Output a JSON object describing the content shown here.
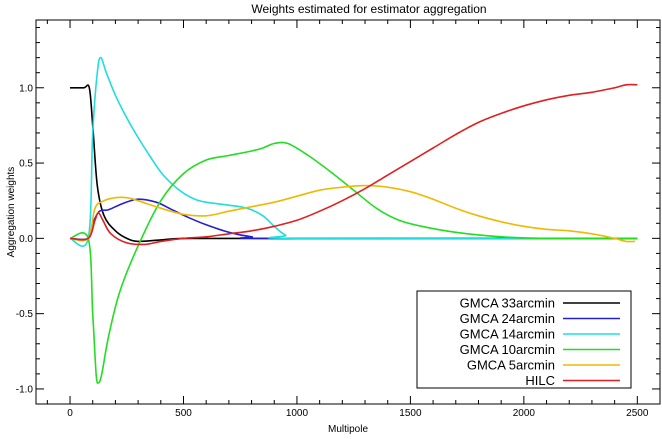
{
  "chart_data": {
    "type": "line",
    "title": "Weights estimated for estimator aggregation",
    "xlabel": "Multipole",
    "ylabel": "Aggregation weights",
    "xlim": [
      -150,
      2600
    ],
    "ylim": [
      -1.1,
      1.45
    ],
    "xticks": [
      0,
      500,
      1000,
      1500,
      2000,
      2500
    ],
    "xtick_labels": [
      "0",
      "500",
      "1000",
      "1500",
      "2000",
      "2500"
    ],
    "yticks": [
      -1.0,
      -0.5,
      0.0,
      0.5,
      1.0
    ],
    "ytick_labels": [
      "-1.0",
      "-0.5",
      "0.0",
      "0.5",
      "1.0"
    ],
    "grid": false,
    "legend_position": "bottom-right",
    "series": [
      {
        "name": "GMCA 33arcmin",
        "color": "#000000",
        "points": [
          [
            0,
            1.0
          ],
          [
            60,
            1.0
          ],
          [
            85,
            1.0
          ],
          [
            100,
            0.75
          ],
          [
            120,
            0.35
          ],
          [
            150,
            0.15
          ],
          [
            200,
            0.05
          ],
          [
            250,
            0.0
          ],
          [
            300,
            -0.02
          ],
          [
            400,
            -0.01
          ],
          [
            500,
            0.0
          ],
          [
            700,
            0.0
          ],
          [
            2500,
            0.0
          ]
        ]
      },
      {
        "name": "GMCA 24arcmin",
        "color": "#2222cc",
        "points": [
          [
            0,
            0.0
          ],
          [
            80,
            0.0
          ],
          [
            100,
            0.1
          ],
          [
            130,
            0.18
          ],
          [
            170,
            0.19
          ],
          [
            230,
            0.23
          ],
          [
            300,
            0.26
          ],
          [
            380,
            0.24
          ],
          [
            450,
            0.19
          ],
          [
            520,
            0.14
          ],
          [
            600,
            0.09
          ],
          [
            700,
            0.04
          ],
          [
            800,
            0.01
          ],
          [
            900,
            0.0
          ],
          [
            2500,
            0.0
          ]
        ]
      },
      {
        "name": "GMCA 14arcmin",
        "color": "#22dddd",
        "points": [
          [
            0,
            0.0
          ],
          [
            80,
            0.0
          ],
          [
            100,
            0.7
          ],
          [
            120,
            1.1
          ],
          [
            135,
            1.2
          ],
          [
            160,
            1.1
          ],
          [
            200,
            0.95
          ],
          [
            250,
            0.8
          ],
          [
            300,
            0.67
          ],
          [
            350,
            0.55
          ],
          [
            400,
            0.44
          ],
          [
            450,
            0.36
          ],
          [
            500,
            0.3
          ],
          [
            550,
            0.26
          ],
          [
            600,
            0.24
          ],
          [
            700,
            0.22
          ],
          [
            780,
            0.2
          ],
          [
            850,
            0.15
          ],
          [
            900,
            0.08
          ],
          [
            950,
            0.02
          ],
          [
            1000,
            0.0
          ],
          [
            2500,
            0.0
          ]
        ]
      },
      {
        "name": "GMCA 10arcmin",
        "color": "#22dd22",
        "points": [
          [
            0,
            0.0
          ],
          [
            80,
            0.0
          ],
          [
            100,
            -0.5
          ],
          [
            115,
            -0.9
          ],
          [
            125,
            -0.96
          ],
          [
            140,
            -0.9
          ],
          [
            170,
            -0.65
          ],
          [
            220,
            -0.35
          ],
          [
            300,
            -0.05
          ],
          [
            400,
            0.25
          ],
          [
            500,
            0.43
          ],
          [
            600,
            0.52
          ],
          [
            700,
            0.55
          ],
          [
            800,
            0.58
          ],
          [
            850,
            0.6
          ],
          [
            900,
            0.63
          ],
          [
            960,
            0.63
          ],
          [
            1050,
            0.55
          ],
          [
            1150,
            0.44
          ],
          [
            1250,
            0.32
          ],
          [
            1350,
            0.2
          ],
          [
            1450,
            0.12
          ],
          [
            1550,
            0.08
          ],
          [
            1700,
            0.04
          ],
          [
            1900,
            0.01
          ],
          [
            2100,
            0.0
          ],
          [
            2500,
            0.0
          ]
        ]
      },
      {
        "name": "GMCA 5arcmin",
        "color": "#f0b800",
        "points": [
          [
            0,
            0.0
          ],
          [
            80,
            0.0
          ],
          [
            110,
            0.2
          ],
          [
            150,
            0.25
          ],
          [
            200,
            0.27
          ],
          [
            250,
            0.27
          ],
          [
            300,
            0.25
          ],
          [
            400,
            0.2
          ],
          [
            500,
            0.16
          ],
          [
            600,
            0.15
          ],
          [
            700,
            0.18
          ],
          [
            800,
            0.21
          ],
          [
            900,
            0.24
          ],
          [
            1000,
            0.28
          ],
          [
            1100,
            0.32
          ],
          [
            1200,
            0.34
          ],
          [
            1300,
            0.35
          ],
          [
            1400,
            0.34
          ],
          [
            1500,
            0.31
          ],
          [
            1600,
            0.26
          ],
          [
            1700,
            0.2
          ],
          [
            1800,
            0.15
          ],
          [
            1900,
            0.11
          ],
          [
            2000,
            0.08
          ],
          [
            2100,
            0.06
          ],
          [
            2200,
            0.05
          ],
          [
            2300,
            0.03
          ],
          [
            2400,
            0.0
          ],
          [
            2450,
            -0.02
          ],
          [
            2490,
            -0.02
          ]
        ]
      },
      {
        "name": "HILC",
        "color": "#e02020",
        "points": [
          [
            0,
            0.0
          ],
          [
            80,
            0.0
          ],
          [
            110,
            0.12
          ],
          [
            125,
            0.17
          ],
          [
            145,
            0.12
          ],
          [
            180,
            0.03
          ],
          [
            250,
            -0.03
          ],
          [
            330,
            -0.04
          ],
          [
            400,
            -0.02
          ],
          [
            500,
            0.0
          ],
          [
            600,
            0.01
          ],
          [
            700,
            0.03
          ],
          [
            800,
            0.05
          ],
          [
            900,
            0.08
          ],
          [
            1000,
            0.12
          ],
          [
            1100,
            0.18
          ],
          [
            1200,
            0.25
          ],
          [
            1300,
            0.33
          ],
          [
            1400,
            0.42
          ],
          [
            1500,
            0.51
          ],
          [
            1600,
            0.6
          ],
          [
            1700,
            0.69
          ],
          [
            1800,
            0.77
          ],
          [
            1900,
            0.83
          ],
          [
            2000,
            0.88
          ],
          [
            2100,
            0.92
          ],
          [
            2200,
            0.95
          ],
          [
            2300,
            0.97
          ],
          [
            2400,
            1.0
          ],
          [
            2450,
            1.02
          ],
          [
            2500,
            1.02
          ]
        ]
      }
    ]
  }
}
